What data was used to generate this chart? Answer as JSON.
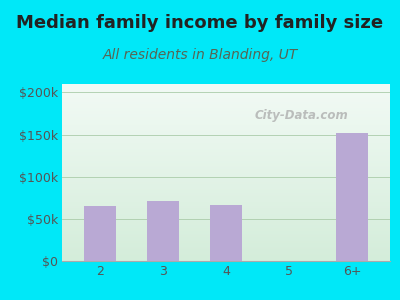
{
  "title": "Median family income by family size",
  "subtitle": "All residents in Blanding, UT",
  "categories": [
    "2",
    "3",
    "4",
    "5",
    "6+"
  ],
  "values": [
    65000,
    71000,
    67000,
    0,
    152000
  ],
  "bar_color": "#b9a9d4",
  "background_outer": "#00e8f8",
  "grad_bottom_left": "#d4edda",
  "grad_top_right": "#f0f8f0",
  "grad_top": "#e8f8f8",
  "title_fontsize": 13,
  "subtitle_fontsize": 10,
  "tick_fontsize": 9,
  "yticks": [
    0,
    50000,
    100000,
    150000,
    200000
  ],
  "ytick_labels": [
    "$0",
    "$50k",
    "$100k",
    "$150k",
    "$200k"
  ],
  "ylim": [
    0,
    210000
  ],
  "watermark": "City-Data.com"
}
